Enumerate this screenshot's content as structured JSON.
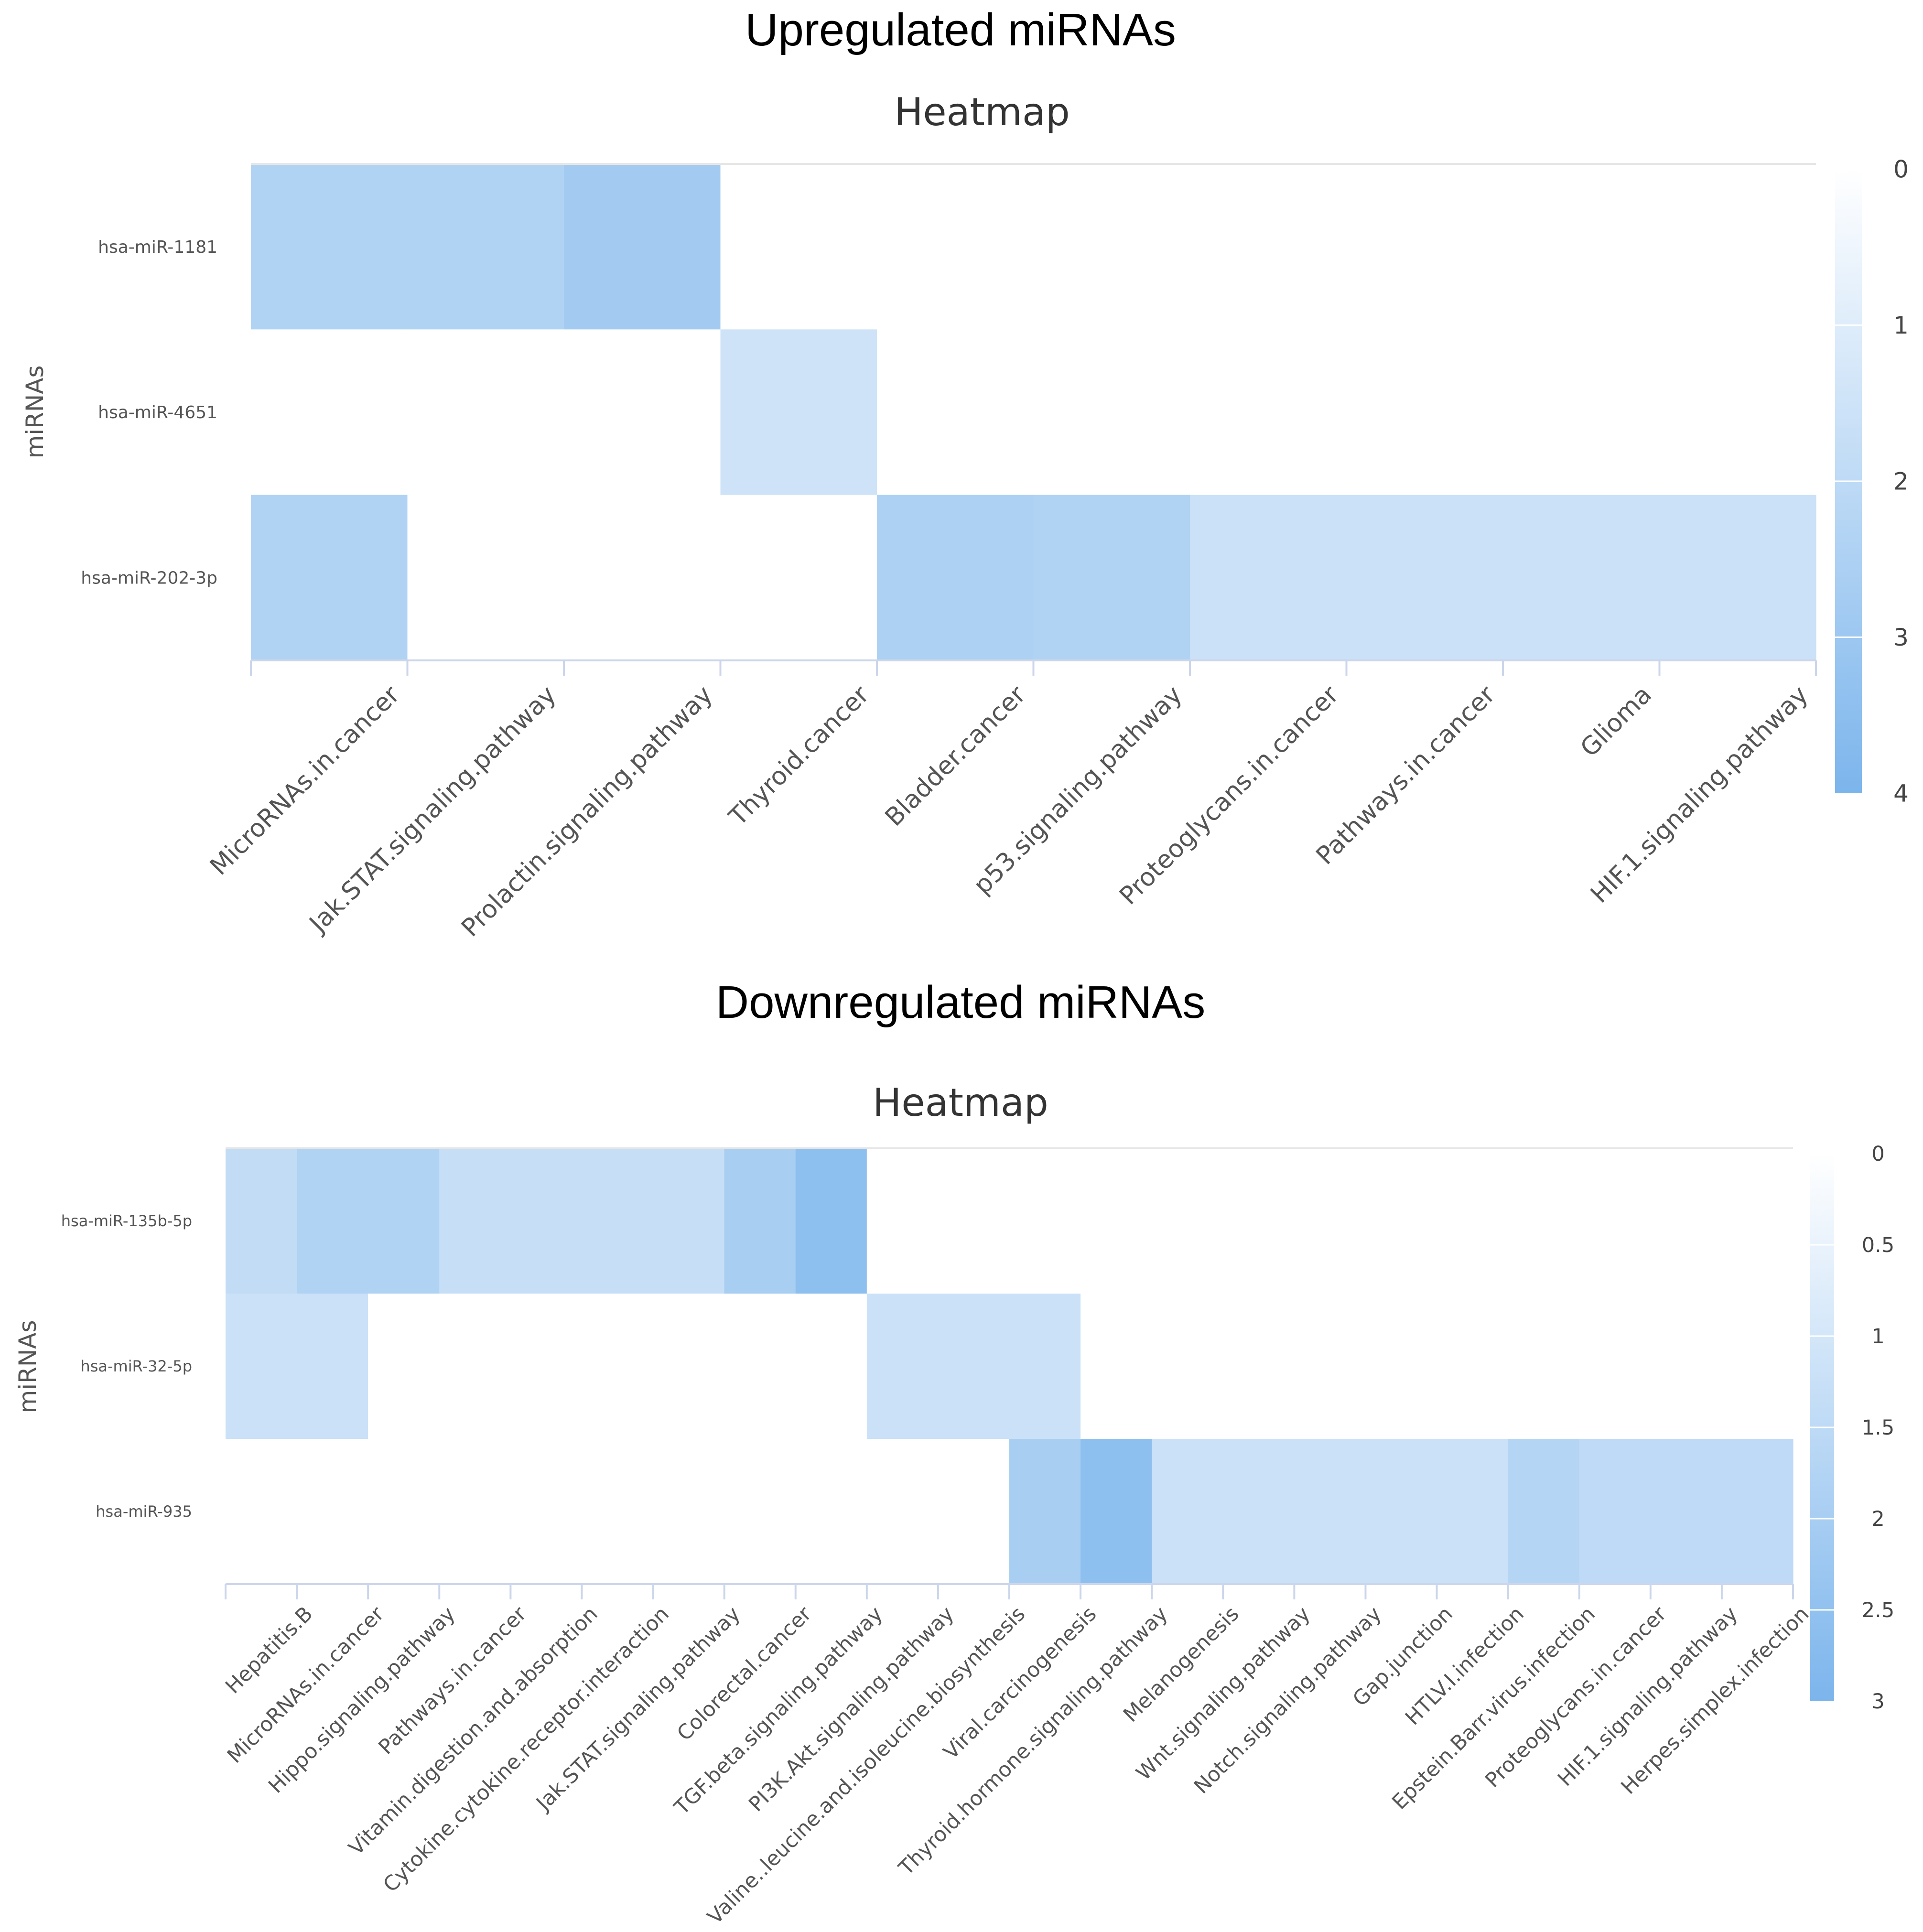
{
  "upregulated": {
    "section_title": "Upregulated miRNAs",
    "chart_data": {
      "type": "heatmap",
      "title": "Heatmap",
      "ylabel": "miRNAs",
      "xlabel": "",
      "rows": [
        "hsa-miR-1181",
        "hsa-miR-4651",
        "hsa-miR-202-3p"
      ],
      "columns": [
        "MicroRNAs.in.cancer",
        "Jak.STAT.signaling.pathway",
        "Prolactin.signaling.pathway",
        "Thyroid.cancer",
        "Bladder.cancer",
        "p53.signaling.pathway",
        "Proteoglycans.in.cancer",
        "Pathways.in.cancer",
        "Glioma",
        "HIF.1.signaling.pathway"
      ],
      "values": [
        [
          2.4,
          2.4,
          2.8,
          0,
          0,
          0,
          0,
          0,
          0,
          0
        ],
        [
          0,
          0,
          0,
          1.5,
          0,
          0,
          0,
          0,
          0,
          0
        ],
        [
          2.4,
          0,
          0,
          0,
          2.5,
          2.4,
          1.6,
          1.6,
          1.6,
          1.6
        ]
      ],
      "color_scale": {
        "min": 0,
        "max": 4,
        "ticks": [
          "0",
          "1",
          "2",
          "3",
          "4"
        ],
        "min_color": "#ffffff",
        "max_color": "#7cb5ec"
      },
      "legend_position": "right"
    }
  },
  "downregulated": {
    "section_title": "Downregulated miRNAs",
    "chart_data": {
      "type": "heatmap",
      "title": "Heatmap",
      "ylabel": "miRNAs",
      "xlabel": "",
      "rows": [
        "hsa-miR-135b-5p",
        "hsa-miR-32-5p",
        "hsa-miR-935"
      ],
      "columns": [
        "Hepatitis.B",
        "MicroRNAs.in.cancer",
        "Hippo.signaling.pathway",
        "Pathways.in.cancer",
        "Vitamin.digestion.and.absorption",
        "Cytokine.cytokine.receptor.interaction",
        "Jak.STAT.signaling.pathway",
        "Colorectal.cancer",
        "TGF.beta.signaling.pathway",
        "PI3K.Akt.signaling.pathway",
        "Valine..leucine.and.isoleucine.biosynthesis",
        "Viral.carcinogenesis",
        "Thyroid.hormone.signaling.pathway",
        "Melanogenesis",
        "Wnt.signaling.pathway",
        "Notch.signaling.pathway",
        "Gap.junction",
        "HTLV.I.infection",
        "Epstein.Barr.virus.infection",
        "Proteoglycans.in.cancer",
        "HIF.1.signaling.pathway",
        "Herpes.simplex.infection"
      ],
      "values": [
        [
          1.4,
          1.8,
          1.8,
          1.3,
          1.3,
          1.3,
          1.3,
          2.0,
          2.6,
          0,
          0,
          0,
          0,
          0,
          0,
          0,
          0,
          0,
          0,
          0,
          0,
          0
        ],
        [
          1.2,
          1.2,
          0,
          0,
          0,
          0,
          0,
          0,
          0,
          1.2,
          1.2,
          1.2,
          0,
          0,
          0,
          0,
          0,
          0,
          0,
          0,
          0,
          0
        ],
        [
          0,
          0,
          0,
          0,
          0,
          0,
          0,
          0,
          0,
          0,
          0,
          2.0,
          2.6,
          1.2,
          1.2,
          1.2,
          1.2,
          1.2,
          1.7,
          1.5,
          1.5,
          1.5
        ]
      ],
      "color_scale": {
        "min": 0,
        "max": 3,
        "ticks": [
          "0",
          "0.5",
          "1",
          "1.5",
          "2",
          "2.5",
          "3"
        ],
        "min_color": "#ffffff",
        "max_color": "#7cb5ec"
      },
      "legend_position": "right"
    }
  }
}
